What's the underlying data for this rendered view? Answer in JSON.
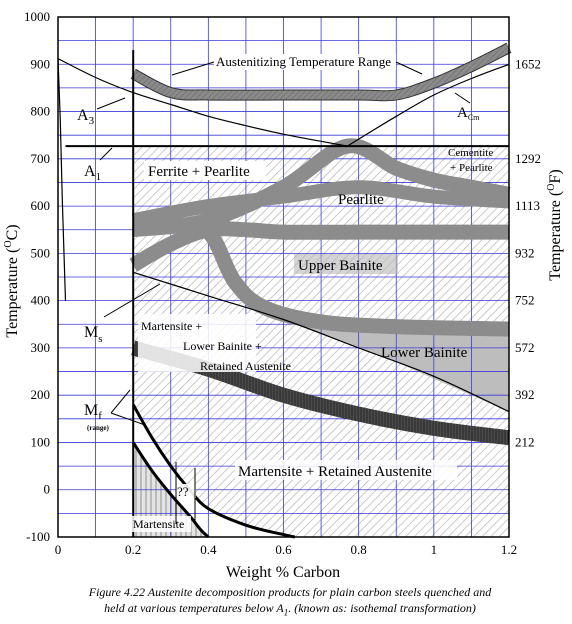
{
  "figure": {
    "caption_line1": "Figure 4.22  Austenite decomposition products for plain carbon steels quenched and",
    "caption_line2": "held at various temperatures below A",
    "caption_sub": "1",
    "caption_line3": ". (known as: isothemal transformation)"
  },
  "chart_data": {
    "type": "line",
    "title": "",
    "xlabel": "Weight % Carbon",
    "ylabel": "Temperature (",
    "ylabel_sup": "O",
    "ylabel_end": "C)",
    "y2label": "Temperature (",
    "y2label_sup": "O",
    "y2label_end": "F)",
    "xlim": [
      0,
      1.2
    ],
    "ylim": [
      -100,
      1000
    ],
    "grid": true,
    "x_ticks": [
      {
        "value": 0,
        "label": "0"
      },
      {
        "value": 0.2,
        "label": "0.2"
      },
      {
        "value": 0.4,
        "label": "0.4"
      },
      {
        "value": 0.6,
        "label": "0.6"
      },
      {
        "value": 0.8,
        "label": "0.8"
      },
      {
        "value": 1.0,
        "label": "1"
      },
      {
        "value": 1.2,
        "label": "1.2"
      }
    ],
    "y_ticks": [
      {
        "value": -100,
        "label": "-100"
      },
      {
        "value": 0,
        "label": "0"
      },
      {
        "value": 100,
        "label": "100"
      },
      {
        "value": 200,
        "label": "200"
      },
      {
        "value": 300,
        "label": "300"
      },
      {
        "value": 400,
        "label": "400"
      },
      {
        "value": 500,
        "label": "500"
      },
      {
        "value": 600,
        "label": "600"
      },
      {
        "value": 700,
        "label": "700"
      },
      {
        "value": 800,
        "label": "800"
      },
      {
        "value": 900,
        "label": "900"
      },
      {
        "value": 1000,
        "label": "1000"
      }
    ],
    "y2_ticks": [
      {
        "value": 900,
        "label": "1652"
      },
      {
        "value": 700,
        "label": "1292"
      },
      {
        "value": 600,
        "label": "1113"
      },
      {
        "value": 500,
        "label": "932"
      },
      {
        "value": 400,
        "label": "752"
      },
      {
        "value": 300,
        "label": "572"
      },
      {
        "value": 200,
        "label": "392"
      },
      {
        "value": 100,
        "label": "212"
      }
    ],
    "curves": [
      {
        "name": "A3",
        "x": [
          0,
          0.1,
          0.2,
          0.3,
          0.4,
          0.5,
          0.6,
          0.7,
          0.77
        ],
        "y": [
          912,
          872,
          840,
          815,
          790,
          770,
          752,
          737,
          727
        ]
      },
      {
        "name": "A3-lower",
        "x": [
          0,
          0.006,
          0.012,
          0.02
        ],
        "y": [
          912,
          780,
          600,
          400
        ]
      },
      {
        "name": "A1",
        "x": [
          0.02,
          1.2
        ],
        "y": [
          727,
          727
        ]
      },
      {
        "name": "Acm",
        "x": [
          0.77,
          0.9,
          1.0,
          1.1,
          1.2
        ],
        "y": [
          727,
          790,
          835,
          870,
          900
        ]
      },
      {
        "name": "Ms",
        "x": [
          0.2,
          0.4,
          0.6,
          0.8,
          1.0,
          1.2
        ],
        "y": [
          460,
          410,
          360,
          300,
          240,
          165
        ]
      },
      {
        "name": "Mf",
        "x": [
          0.2,
          0.25,
          0.3,
          0.35,
          0.4,
          0.5,
          0.6,
          0.63
        ],
        "y": [
          180,
          110,
          50,
          0,
          -40,
          -75,
          -95,
          -100
        ]
      },
      {
        "name": "Mf-lower",
        "x": [
          0.2,
          0.25,
          0.3,
          0.35,
          0.38,
          0.4
        ],
        "y": [
          100,
          40,
          -10,
          -55,
          -85,
          -100
        ]
      },
      {
        "name": "left-boundary",
        "x": [
          0.2,
          0.2
        ],
        "y": [
          -100,
          930
        ]
      }
    ],
    "bands": [
      {
        "name": "Austenitizing Temperature Range",
        "x": [
          0.2,
          0.3,
          0.4,
          0.6,
          0.8,
          0.9,
          1.0,
          1.1,
          1.2
        ],
        "y": [
          880,
          840,
          835,
          835,
          835,
          835,
          860,
          895,
          935
        ]
      },
      {
        "name": "pearlite-band-1",
        "x": [
          0.2,
          0.4,
          0.6,
          0.77,
          0.9,
          1.0,
          1.1,
          1.2
        ],
        "y": [
          550,
          570,
          640,
          727,
          680,
          655,
          640,
          625
        ]
      },
      {
        "name": "pearlite-band-2",
        "x": [
          0.2,
          0.4,
          0.6,
          0.8,
          1.0,
          1.2
        ],
        "y": [
          570,
          600,
          620,
          640,
          620,
          610
        ]
      },
      {
        "name": "bainite-band-1",
        "x": [
          0.2,
          0.3,
          0.4,
          0.5,
          0.6,
          0.8,
          1.0,
          1.2
        ],
        "y": [
          475,
          520,
          550,
          550,
          545,
          545,
          545,
          545
        ]
      },
      {
        "name": "bainite-band-2",
        "x": [
          0.2,
          0.3,
          0.4,
          0.47,
          0.55,
          0.7,
          0.9,
          1.2
        ],
        "y": [
          570,
          560,
          545,
          440,
          385,
          355,
          345,
          340
        ]
      },
      {
        "name": "lower-bainite-band",
        "x": [
          0.2,
          0.4,
          0.6,
          0.8,
          1.0,
          1.2
        ],
        "y": [
          300,
          255,
          200,
          160,
          130,
          110
        ]
      }
    ],
    "region_labels": [
      {
        "text": "Ferrite + Pearlite"
      },
      {
        "text": "Pearlite"
      },
      {
        "text": "Upper Bainite"
      },
      {
        "text": "Lower Bainite"
      },
      {
        "text": "Martensite +"
      },
      {
        "text": "Lower Bainite +"
      },
      {
        "text": "Retained Austenite"
      },
      {
        "text": "Martensite + Retained Austenite"
      },
      {
        "text": "Martensite"
      },
      {
        "text": "Cementite"
      },
      {
        "text": "+ Pearlite"
      },
      {
        "text": "??"
      }
    ],
    "annotations": [
      {
        "text": "A",
        "sub": "3"
      },
      {
        "text": "A",
        "sub": "1"
      },
      {
        "text": "A",
        "sub": "Cm"
      },
      {
        "text": "M",
        "sub": "s"
      },
      {
        "text": "M",
        "sub": "f"
      },
      {
        "text": "(range)"
      },
      {
        "text": "Austenitizing Temperature Range"
      }
    ],
    "colors": {
      "grid": "#3a3ad6",
      "band": "#8a8a8a",
      "band_dark": "#3c3c3c",
      "hatch": "#b8b8b8",
      "curve": "#000000"
    }
  }
}
